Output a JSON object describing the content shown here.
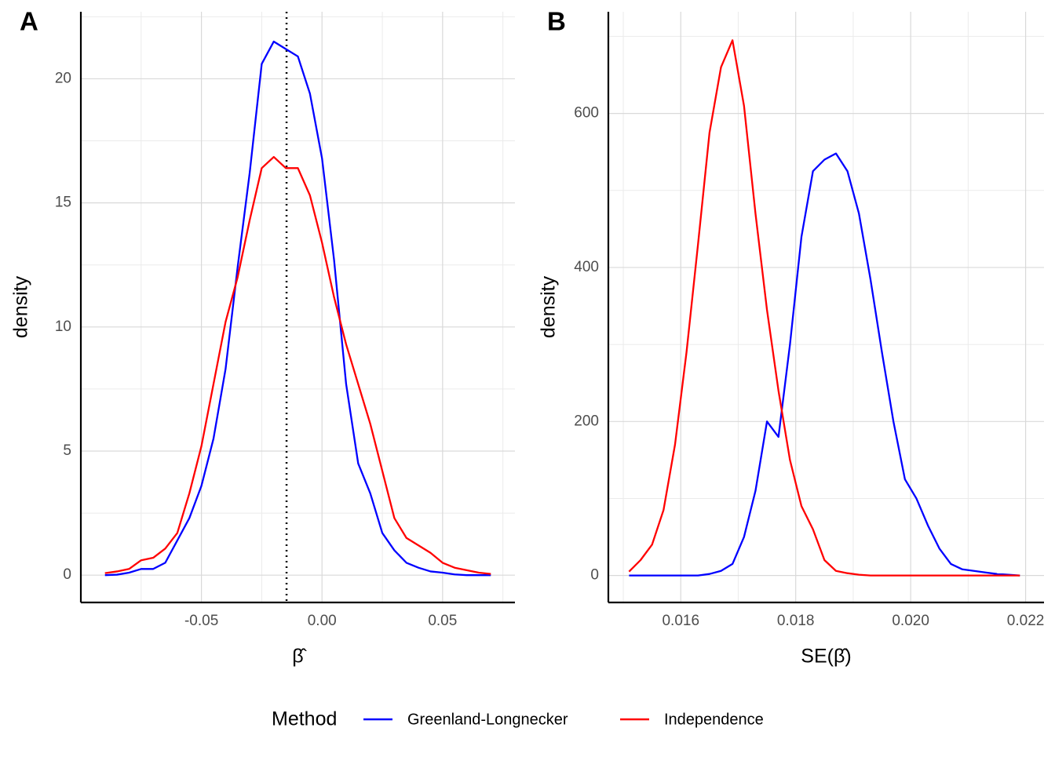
{
  "chart_data": [
    {
      "type": "line",
      "panel_label": "A",
      "xlabel": "β̂",
      "ylabel": "density",
      "legend_title": "Method",
      "x": [
        -0.09,
        -0.085,
        -0.08,
        -0.075,
        -0.07,
        -0.065,
        -0.06,
        -0.055,
        -0.05,
        -0.045,
        -0.04,
        -0.035,
        -0.03,
        -0.025,
        -0.02,
        -0.015,
        -0.01,
        -0.005,
        0,
        0.005,
        0.01,
        0.015,
        0.02,
        0.025,
        0.03,
        0.035,
        0.04,
        0.045,
        0.05,
        0.055,
        0.06,
        0.065,
        0.07
      ],
      "series": [
        {
          "name": "Greenland-Longnecker",
          "color": "#0000ff",
          "values": [
            0,
            0.02,
            0.1,
            0.25,
            0.25,
            0.5,
            1.4,
            2.3,
            3.6,
            5.5,
            8.3,
            12.4,
            16.2,
            20.6,
            21.5,
            21.2,
            20.9,
            19.4,
            16.8,
            12.7,
            7.7,
            4.5,
            3.3,
            1.7,
            1,
            0.5,
            0.3,
            0.15,
            0.1,
            0.03,
            0,
            0,
            0
          ]
        },
        {
          "name": "Independence",
          "color": "#ff0000",
          "values": [
            0.08,
            0.15,
            0.25,
            0.6,
            0.7,
            1.07,
            1.7,
            3.3,
            5.2,
            7.7,
            10.2,
            12,
            14.3,
            16.4,
            16.85,
            16.4,
            16.4,
            15.3,
            13.4,
            11.2,
            9.3,
            7.7,
            6.1,
            4.2,
            2.3,
            1.5,
            1.2,
            0.9,
            0.5,
            0.3,
            0.2,
            0.1,
            0.05
          ]
        }
      ],
      "vline": -0.0147,
      "xlim": [
        -0.1,
        0.08
      ],
      "xticks": [
        -0.05,
        {
          "value": 0,
          "label": "0.00"
        },
        0.05
      ],
      "xminor": [
        -0.075,
        -0.025,
        0.025,
        0.075
      ],
      "ylim": [
        -1.1,
        22.7
      ],
      "yticks": [
        0,
        5,
        10,
        15,
        20
      ],
      "yminor": [
        2.5,
        7.5,
        12.5,
        17.5,
        22.5
      ],
      "grid": true
    },
    {
      "type": "line",
      "panel_label": "B",
      "xlabel": "SE(β̂)",
      "ylabel": "density",
      "x": [
        0.0151,
        0.0153,
        0.0155,
        0.0157,
        0.0159,
        0.0161,
        0.0163,
        0.0165,
        0.0167,
        0.0169,
        0.0171,
        0.0173,
        0.0175,
        0.0177,
        0.0179,
        0.0181,
        0.0183,
        0.0185,
        0.0187,
        0.0189,
        0.0191,
        0.0193,
        0.0195,
        0.0197,
        0.0199,
        0.0201,
        0.0203,
        0.0205,
        0.0207,
        0.0209,
        0.0211,
        0.0213,
        0.0215,
        0.0217,
        0.0219
      ],
      "series": [
        {
          "name": "Greenland-Longnecker",
          "color": "#0000ff",
          "values": [
            0,
            0,
            0,
            0,
            0,
            0,
            0,
            2,
            6,
            15,
            50,
            110,
            200,
            180,
            300,
            440,
            525,
            540,
            548,
            525,
            470,
            385,
            290,
            200,
            125,
            100,
            65,
            35,
            15,
            8,
            6,
            4,
            2,
            1,
            0
          ]
        },
        {
          "name": "Independence",
          "color": "#ff0000",
          "values": [
            5,
            20,
            40,
            85,
            170,
            290,
            430,
            575,
            660,
            695,
            610,
            470,
            345,
            240,
            150,
            90,
            60,
            20,
            6,
            3,
            1,
            0,
            0,
            0,
            0,
            0,
            0,
            0,
            0,
            0,
            0,
            0,
            0,
            0,
            0
          ]
        }
      ],
      "xlim": [
        0.01474,
        0.02232
      ],
      "xticks": [
        0.016,
        0.018,
        {
          "value": 0.02,
          "label": "0.020"
        },
        0.022
      ],
      "xminor": [
        0.015,
        0.017,
        0.019,
        0.021
      ],
      "ylim": [
        -35,
        732
      ],
      "yticks": [
        0,
        200,
        400,
        600
      ],
      "yminor": [
        100,
        300,
        500,
        700
      ],
      "grid": true
    }
  ]
}
